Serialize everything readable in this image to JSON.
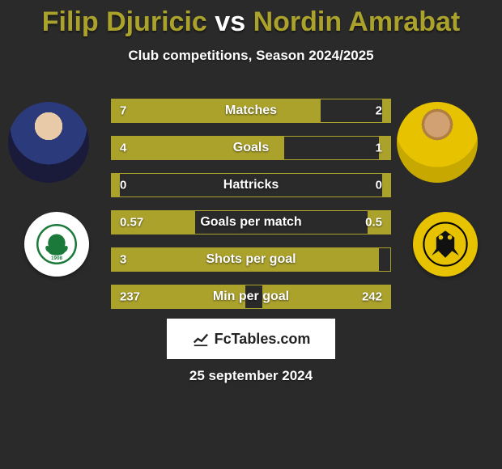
{
  "title_color": "#aba22c",
  "player1_name": "Filip Djuricic",
  "vs_text": "vs",
  "player2_name": "Nordin Amrabat",
  "subtitle": "Club competitions, Season 2024/2025",
  "bar_color": "#aba22c",
  "bar_border": "#aba22c",
  "background": "#2a2a2a",
  "bars": [
    {
      "label": "Matches",
      "left_val": "7",
      "right_val": "2",
      "left_pct": 75,
      "right_pct": 3
    },
    {
      "label": "Goals",
      "left_val": "4",
      "right_val": "1",
      "left_pct": 62,
      "right_pct": 4
    },
    {
      "label": "Hattricks",
      "left_val": "0",
      "right_val": "0",
      "left_pct": 3,
      "right_pct": 3
    },
    {
      "label": "Goals per match",
      "left_val": "0.57",
      "right_val": "0.5",
      "left_pct": 30,
      "right_pct": 8
    },
    {
      "label": "Shots per goal",
      "left_val": "3",
      "right_val": "",
      "left_pct": 96,
      "right_pct": 0
    },
    {
      "label": "Min per goal",
      "left_val": "237",
      "right_val": "242",
      "left_pct": 48,
      "right_pct": 46
    }
  ],
  "fctables_text": "FcTables.com",
  "date_text": "25 september 2024",
  "player1_club": "Panathinaikos",
  "player2_club": "AEK"
}
